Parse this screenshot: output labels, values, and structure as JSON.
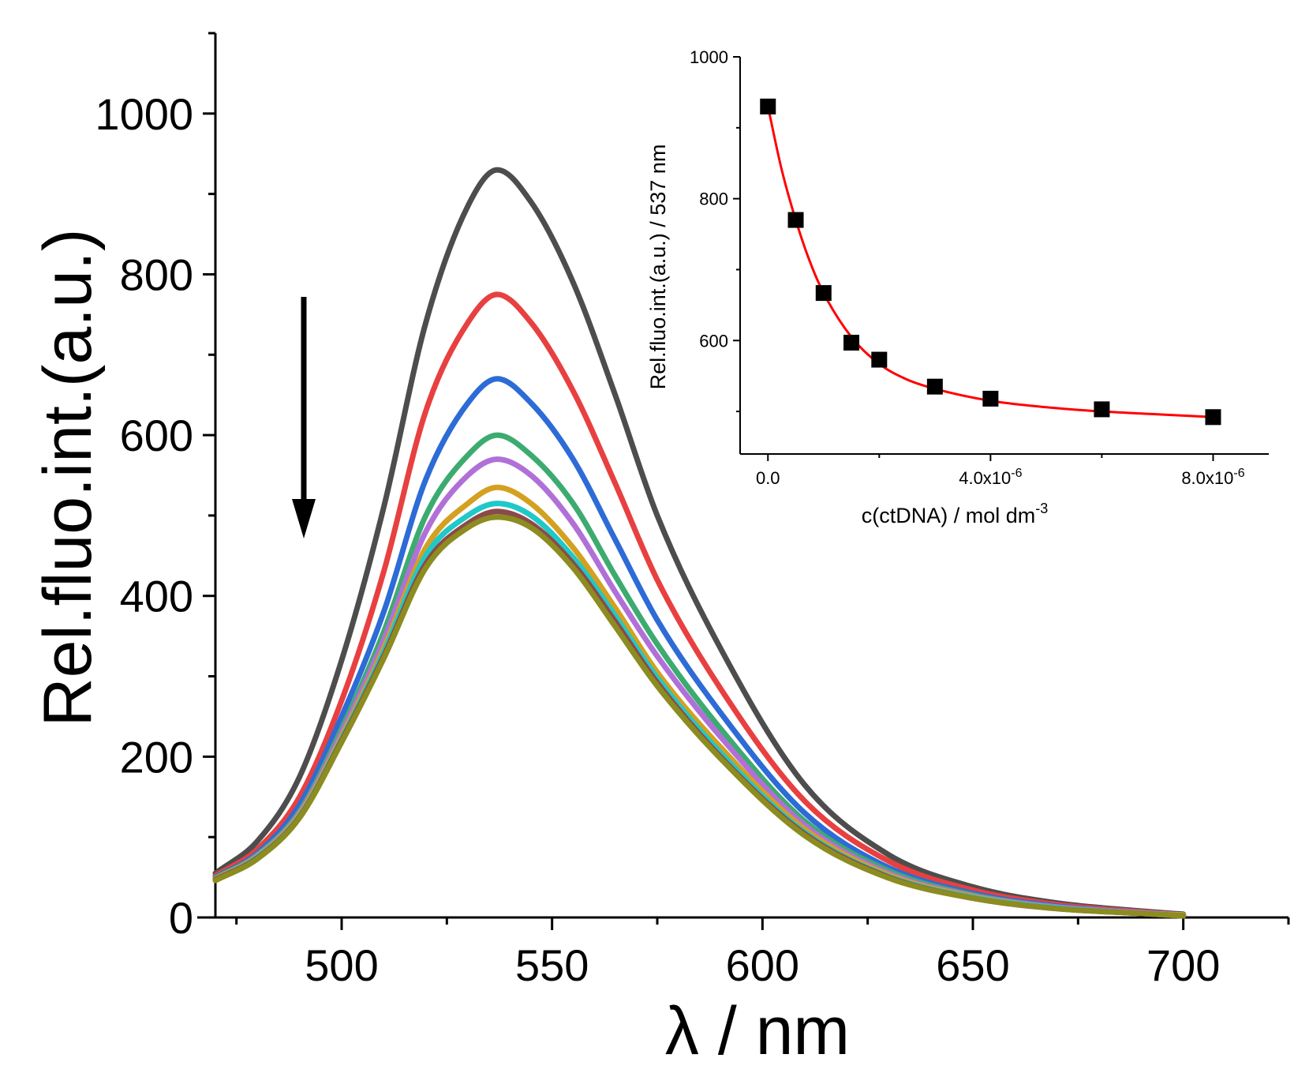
{
  "chart_data": [
    {
      "type": "line",
      "xlabel": "λ / nm",
      "ylabel": "Rel.fluo.int.(a.u.)",
      "xlim": [
        470,
        725
      ],
      "ylim": [
        0,
        1100
      ],
      "x_ticks": [
        "500",
        "550",
        "600",
        "650",
        "700"
      ],
      "y_ticks": [
        "0",
        "200",
        "400",
        "600",
        "800",
        "1000"
      ],
      "legend": "none",
      "grid": false,
      "annotation": "downward arrow indicating decreasing intensity with increasing ctDNA",
      "x": [
        470,
        480,
        490,
        500,
        510,
        520,
        530,
        537,
        545,
        555,
        565,
        575,
        590,
        610,
        630,
        650,
        670,
        690,
        700
      ],
      "series": [
        {
          "color": "#4d4d4d",
          "values": [
            55,
            95,
            175,
            320,
            510,
            740,
            885,
            930,
            890,
            790,
            650,
            500,
            335,
            165,
            78,
            38,
            18,
            8,
            4
          ]
        },
        {
          "color": "#e84040",
          "values": [
            52,
            85,
            150,
            270,
            430,
            630,
            740,
            775,
            740,
            655,
            540,
            420,
            285,
            145,
            70,
            34,
            16,
            7,
            3
          ]
        },
        {
          "color": "#2d6bd6",
          "values": [
            50,
            80,
            140,
            250,
            380,
            545,
            640,
            670,
            640,
            570,
            470,
            370,
            255,
            130,
            62,
            30,
            14,
            6,
            3
          ]
        },
        {
          "color": "#3cab70",
          "values": [
            49,
            78,
            132,
            235,
            355,
            500,
            575,
            600,
            575,
            515,
            425,
            340,
            235,
            120,
            58,
            28,
            13,
            6,
            3
          ]
        },
        {
          "color": "#b070d8",
          "values": [
            48,
            77,
            130,
            230,
            345,
            480,
            550,
            570,
            550,
            490,
            405,
            325,
            225,
            115,
            55,
            27,
            13,
            6,
            3
          ]
        },
        {
          "color": "#d4a020",
          "values": [
            48,
            76,
            128,
            225,
            335,
            460,
            515,
            535,
            515,
            460,
            385,
            305,
            212,
            110,
            53,
            26,
            12,
            5,
            3
          ]
        },
        {
          "color": "#20c8c8",
          "values": [
            47,
            75,
            126,
            222,
            330,
            450,
            500,
            515,
            500,
            448,
            375,
            298,
            205,
            106,
            51,
            25,
            12,
            5,
            2
          ]
        },
        {
          "color": "#8a4a4a",
          "values": [
            47,
            74,
            125,
            220,
            325,
            440,
            490,
            505,
            490,
            440,
            368,
            292,
            200,
            104,
            50,
            24,
            11,
            5,
            2
          ]
        },
        {
          "color": "#8c8c20",
          "values": [
            46,
            73,
            124,
            218,
            322,
            435,
            485,
            498,
            485,
            435,
            362,
            288,
            198,
            102,
            49,
            24,
            11,
            5,
            2
          ]
        }
      ]
    },
    {
      "type": "scatter",
      "xlabel": "c(ctDNA) / mol dm",
      "xlabel_sup": "-3",
      "ylabel": "Rel.fluo.int.(a.u.) / 537 nm",
      "xlim": [
        -5e-07,
        9e-06
      ],
      "ylim": [
        440,
        1000
      ],
      "x_ticks": [
        {
          "value": 0,
          "text": "0.0",
          "sup": ""
        },
        {
          "value": 4e-06,
          "text": "4.0x10",
          "sup": "-6"
        },
        {
          "value": 8e-06,
          "text": "8.0x10",
          "sup": "-6"
        }
      ],
      "y_ticks": [
        "600",
        "800",
        "1000"
      ],
      "grid": false,
      "marker_color": "#000000",
      "fit_color": "#ff0000",
      "x": [
        0,
        5e-07,
        1e-06,
        1.5e-06,
        2e-06,
        3e-06,
        4e-06,
        6e-06,
        8e-06
      ],
      "values": [
        930,
        770,
        667,
        597,
        573,
        535,
        518,
        503,
        492
      ],
      "fit": {
        "x": [
          0,
          2.5e-07,
          5e-07,
          7.5e-07,
          1e-06,
          1.5e-06,
          2e-06,
          2.5e-06,
          3e-06,
          4e-06,
          5e-06,
          6e-06,
          7e-06,
          8e-06
        ],
        "values": [
          930,
          840,
          770,
          712,
          667,
          605,
          567,
          545,
          532,
          515,
          506,
          500,
          496,
          492
        ]
      }
    }
  ]
}
